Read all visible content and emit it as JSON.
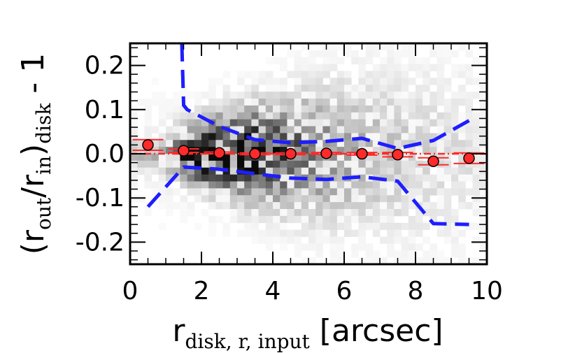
{
  "chart_data": {
    "type": "scatter",
    "title": "",
    "xlabel": {
      "base": "r",
      "subscript": "disk, r, input",
      "suffix": " [arcsec]"
    },
    "ylabel": {
      "open": "(r",
      "sub1": "out",
      "slash": "/r",
      "sub2": "in",
      "close": ")",
      "sub3": "disk",
      "suffix": " - 1"
    },
    "xlim": [
      0,
      10
    ],
    "ylim": [
      -0.25,
      0.25
    ],
    "xticks": [
      0,
      2,
      4,
      6,
      8,
      10
    ],
    "xtick_labels": [
      "0",
      "2",
      "4",
      "6",
      "8",
      "10"
    ],
    "yticks": [
      0.2,
      0.1,
      0.0,
      -0.1,
      -0.2
    ],
    "ytick_labels": [
      "0.2",
      "0.1",
      "0.0",
      "-0.1",
      "-0.2"
    ],
    "grid": false,
    "series": [
      {
        "kind": "median_points",
        "color": "#ff2a2a",
        "edge": "#000000",
        "x": [
          0.5,
          1.5,
          2.5,
          3.5,
          4.5,
          5.5,
          6.5,
          7.5,
          8.5,
          9.5
        ],
        "y": [
          0.02,
          0.007,
          0.002,
          0.0,
          0.0,
          0.001,
          0.0,
          -0.002,
          -0.017,
          -0.01
        ],
        "yerr": [
          0.012,
          0.004,
          0.002,
          0.002,
          0.002,
          0.002,
          0.003,
          0.005,
          0.008,
          0.012
        ]
      },
      {
        "kind": "reference_line",
        "color": "#ff2a2a",
        "style": "dash-dot",
        "y": 0.0
      },
      {
        "kind": "upper_envelope",
        "color": "#1e1eff",
        "style": "dashed",
        "x": [
          1.45,
          1.5,
          1.6,
          2.5,
          3.5,
          4.5,
          5.5,
          6.5,
          7.5,
          8.5,
          9.5
        ],
        "y": [
          0.25,
          0.11,
          0.1,
          0.062,
          0.032,
          0.025,
          0.028,
          0.035,
          0.012,
          0.03,
          0.075
        ]
      },
      {
        "kind": "lower_envelope",
        "color": "#1e1eff",
        "style": "dashed",
        "x": [
          0.5,
          1.5,
          2.5,
          3.5,
          4.5,
          5.5,
          6.5,
          7.5,
          8.5,
          9.5
        ],
        "y": [
          -0.12,
          -0.03,
          -0.035,
          -0.045,
          -0.055,
          -0.058,
          -0.052,
          -0.062,
          -0.158,
          -0.16
        ]
      }
    ],
    "density_background": {
      "colormap": "greys",
      "note_peak": [
        2.5,
        0.0
      ]
    }
  }
}
